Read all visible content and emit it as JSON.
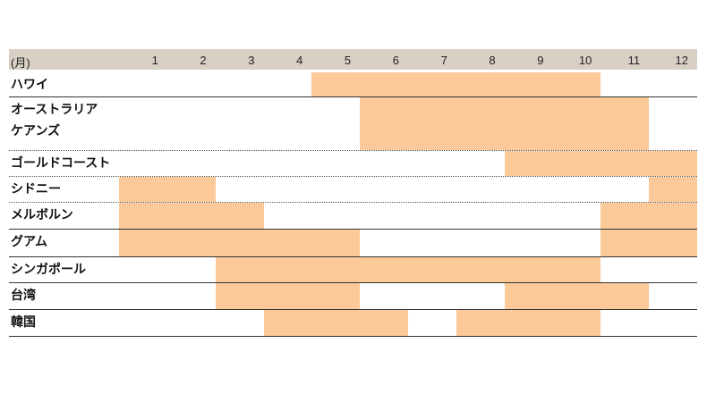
{
  "chart_data": {
    "type": "gantt",
    "x_label": "(月)",
    "xlim": [
      0,
      12
    ],
    "xticks": [
      1,
      2,
      3,
      4,
      5,
      6,
      7,
      8,
      9,
      10,
      11,
      12
    ],
    "color": "#fcc998",
    "header_color": "#d9d0c5",
    "categories": [
      "ハワイ",
      "オーストラリア\nケアンズ",
      "ゴールドコースト",
      "シドニー",
      "メルボルン",
      "グアム",
      "シンガポール",
      "台湾",
      "韓国"
    ],
    "segments": [
      [
        [
          5,
          10
        ]
      ],
      [
        [
          6,
          11
        ]
      ],
      [
        [
          9,
          12
        ]
      ],
      [
        [
          1,
          2
        ],
        [
          12,
          12
        ]
      ],
      [
        [
          1,
          3
        ],
        [
          11,
          12
        ]
      ],
      [
        [
          1,
          5
        ],
        [
          11,
          12
        ]
      ],
      [
        [
          3,
          10
        ]
      ],
      [
        [
          3,
          5
        ],
        [
          9,
          11
        ]
      ],
      [
        [
          4,
          6
        ],
        [
          8,
          10
        ]
      ]
    ]
  }
}
